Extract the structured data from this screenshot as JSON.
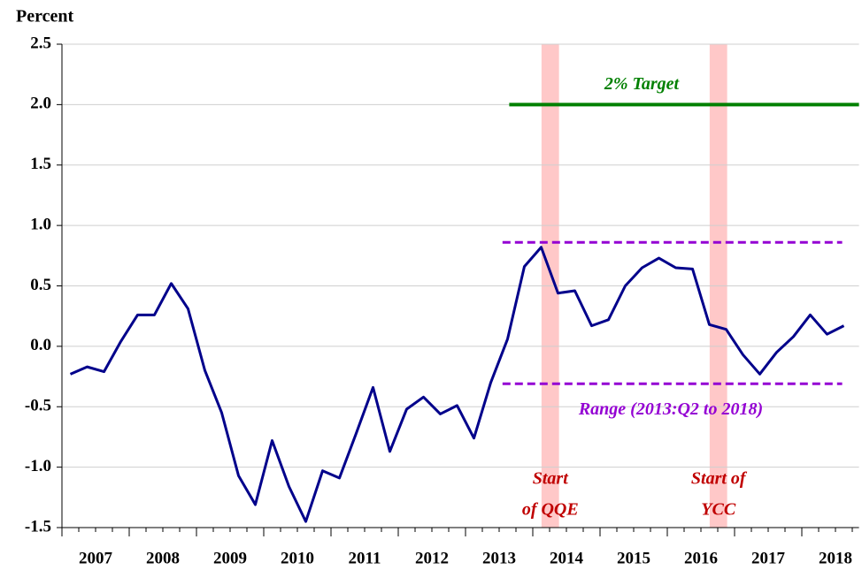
{
  "chart_data": {
    "type": "line",
    "y_label": "Percent",
    "xlim": [
      2007,
      2018.85
    ],
    "ylim": [
      -1.5,
      2.5
    ],
    "xticks": [
      {
        "value": 2007.5,
        "label": "2007"
      },
      {
        "value": 2008.5,
        "label": "2008"
      },
      {
        "value": 2009.5,
        "label": "2009"
      },
      {
        "value": 2010.5,
        "label": "2010"
      },
      {
        "value": 2011.5,
        "label": "2011"
      },
      {
        "value": 2012.5,
        "label": "2012"
      },
      {
        "value": 2013.5,
        "label": "2013"
      },
      {
        "value": 2014.5,
        "label": "2014"
      },
      {
        "value": 2015.5,
        "label": "2015"
      },
      {
        "value": 2016.5,
        "label": "2016"
      },
      {
        "value": 2017.5,
        "label": "2017"
      },
      {
        "value": 2018.5,
        "label": "2018"
      }
    ],
    "yticks": [
      {
        "value": -1.5,
        "label": "-1.5"
      },
      {
        "value": -1,
        "label": "-1.0"
      },
      -0.5,
      {
        "value": 0,
        "label": "0.0"
      },
      0.5,
      {
        "value": 1,
        "label": "1.0"
      },
      1.5,
      {
        "value": 2,
        "label": "2.0"
      },
      2.5
    ],
    "grid": true,
    "series": [
      {
        "color": "#00008b",
        "x": [
          2007.125,
          2007.375,
          2007.625,
          2007.875,
          2008.125,
          2008.375,
          2008.625,
          2008.875,
          2009.125,
          2009.375,
          2009.625,
          2009.875,
          2010.125,
          2010.375,
          2010.625,
          2010.875,
          2011.125,
          2011.375,
          2011.625,
          2011.875,
          2012.125,
          2012.375,
          2012.625,
          2012.875,
          2013.125,
          2013.375,
          2013.625,
          2013.875,
          2014.125,
          2014.375,
          2014.625,
          2014.875,
          2015.125,
          2015.375,
          2015.625,
          2015.875,
          2016.125,
          2016.375,
          2016.625,
          2016.875,
          2017.125,
          2017.375,
          2017.625,
          2017.875,
          2018.125,
          2018.375,
          2018.625
        ],
        "values": [
          -0.23,
          -0.17,
          -0.21,
          0.04,
          0.26,
          0.26,
          0.52,
          0.31,
          -0.2,
          -0.55,
          -1.07,
          -1.31,
          -0.78,
          -1.16,
          -1.45,
          -1.03,
          -1.09,
          -0.72,
          -0.34,
          -0.87,
          -0.52,
          -0.42,
          -0.56,
          -0.49,
          -0.76,
          -0.3,
          0.06,
          0.66,
          0.82,
          0.44,
          0.46,
          0.17,
          0.22,
          0.5,
          0.65,
          0.73,
          0.65,
          0.64,
          0.18,
          0.14,
          -0.07,
          -0.23,
          -0.05,
          0.08,
          0.26,
          0.1,
          0.17
        ]
      }
    ],
    "target": {
      "label": "2% Target",
      "value": 2,
      "x": [
        2013.65,
        2018.85
      ],
      "color": "#008000"
    },
    "range": {
      "label": "Range (2013:Q2 to 2018)",
      "values": [
        0.86,
        -0.31
      ],
      "x": [
        2013.55,
        2018.6
      ],
      "color": "#9400d3"
    },
    "bands": [
      {
        "x": [
          2014.13,
          2014.39
        ],
        "label": [
          "Start",
          "of QQE"
        ]
      },
      {
        "x": [
          2016.63,
          2016.89
        ],
        "label": [
          "Start of",
          "YCC"
        ]
      }
    ]
  }
}
